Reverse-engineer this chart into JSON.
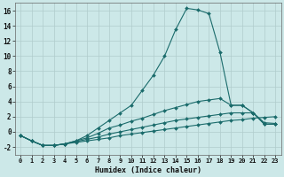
{
  "xlabel": "Humidex (Indice chaleur)",
  "ylabel": "",
  "bg_color": "#cce8e8",
  "grid_color": "#b0cccc",
  "line_color": "#1a6b6b",
  "xlim": [
    -0.5,
    23.5
  ],
  "ylim": [
    -3.0,
    17.0
  ],
  "yticks": [
    -2,
    0,
    2,
    4,
    6,
    8,
    10,
    12,
    14,
    16
  ],
  "xticks": [
    0,
    1,
    2,
    3,
    4,
    5,
    6,
    7,
    8,
    9,
    10,
    11,
    12,
    13,
    14,
    15,
    16,
    17,
    18,
    19,
    20,
    21,
    22,
    23
  ],
  "lines": [
    {
      "x": [
        0,
        1,
        2,
        3,
        4,
        5,
        6,
        7,
        8,
        9,
        10,
        11,
        12,
        13,
        14,
        15,
        16,
        17,
        18,
        19,
        20,
        21,
        22,
        23
      ],
      "y": [
        -0.5,
        -1.2,
        -1.8,
        -1.8,
        -1.6,
        -1.4,
        -1.2,
        -1.0,
        -0.8,
        -0.5,
        -0.3,
        -0.1,
        0.1,
        0.3,
        0.5,
        0.7,
        0.9,
        1.1,
        1.3,
        1.5,
        1.6,
        1.8,
        1.9,
        2.0
      ]
    },
    {
      "x": [
        0,
        1,
        2,
        3,
        4,
        5,
        6,
        7,
        8,
        9,
        10,
        11,
        12,
        13,
        14,
        15,
        16,
        17,
        18,
        19,
        20,
        21,
        22,
        23
      ],
      "y": [
        -0.5,
        -1.2,
        -1.8,
        -1.8,
        -1.6,
        -1.3,
        -1.0,
        -0.7,
        -0.3,
        0.0,
        0.3,
        0.6,
        0.9,
        1.2,
        1.5,
        1.7,
        1.9,
        2.1,
        2.3,
        2.5,
        2.5,
        2.5,
        1.2,
        1.1
      ]
    },
    {
      "x": [
        0,
        1,
        2,
        3,
        4,
        5,
        6,
        7,
        8,
        9,
        10,
        11,
        12,
        13,
        14,
        15,
        16,
        17,
        18,
        19,
        20,
        21,
        22,
        23
      ],
      "y": [
        -0.5,
        -1.2,
        -1.8,
        -1.8,
        -1.6,
        -1.2,
        -0.5,
        0.5,
        1.5,
        2.5,
        3.5,
        5.5,
        7.5,
        10.0,
        13.5,
        16.3,
        16.1,
        15.6,
        10.5,
        3.5,
        3.5,
        2.5,
        1.0,
        1.0
      ]
    },
    {
      "x": [
        0,
        1,
        2,
        3,
        4,
        5,
        6,
        7,
        8,
        9,
        10,
        11,
        12,
        13,
        14,
        15,
        16,
        17,
        18,
        19,
        20,
        21,
        22,
        23
      ],
      "y": [
        -0.5,
        -1.2,
        -1.8,
        -1.8,
        -1.6,
        -1.2,
        -0.8,
        -0.2,
        0.5,
        0.9,
        1.4,
        1.8,
        2.3,
        2.8,
        3.2,
        3.6,
        4.0,
        4.2,
        4.4,
        3.5,
        3.5,
        2.5,
        1.0,
        1.0
      ]
    }
  ]
}
